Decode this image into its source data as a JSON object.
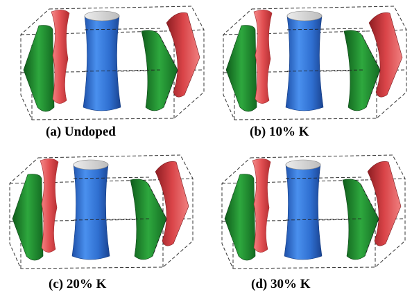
{
  "panels": [
    {
      "id": "a",
      "caption": "(a) Undoped"
    },
    {
      "id": "b",
      "caption": "(b) 10% K"
    },
    {
      "id": "c",
      "caption": "(c) 20% K"
    },
    {
      "id": "d",
      "caption": "(d) 30% K"
    }
  ],
  "colors": {
    "red_sheet": "#e24f52",
    "green_sheet": "#1d8a2c",
    "blue_cylinder": "#2f6fd0",
    "brillouin_zone_edge": "#333333"
  }
}
